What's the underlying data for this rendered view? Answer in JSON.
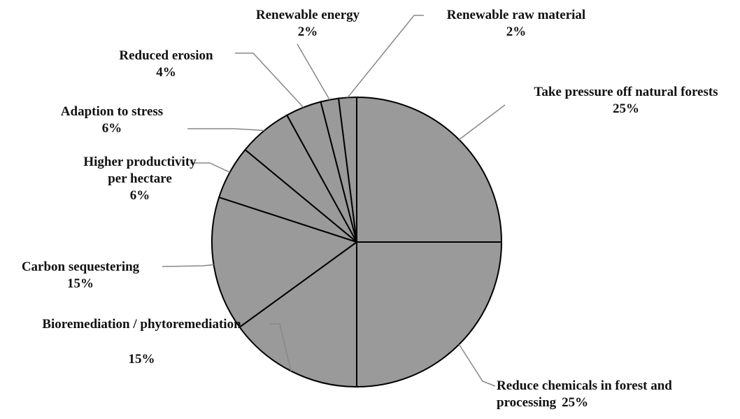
{
  "chart_data": {
    "type": "pie",
    "categories": [
      "Take pressure off natural forests",
      "Reduce chemicals in forest and processing",
      "Bioremediation / phytoremediation",
      "Carbon sequestering",
      "Higher productivity per hectare",
      "Adaption to stress",
      "Reduced erosion",
      "Renewable energy",
      "Renewable raw material"
    ],
    "values": [
      25,
      25,
      15,
      15,
      6,
      6,
      4,
      2,
      2
    ],
    "value_labels": [
      "25%",
      "25%",
      "15%",
      "15%",
      "6%",
      "6%",
      "4%",
      "2%",
      "2%"
    ],
    "color": "#9a9a9a"
  }
}
